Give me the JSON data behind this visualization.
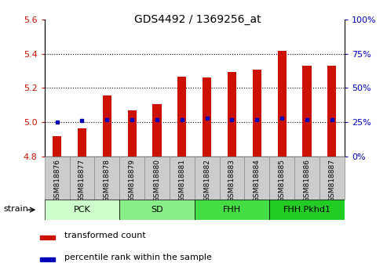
{
  "title": "GDS4492 / 1369256_at",
  "samples": [
    "GSM818876",
    "GSM818877",
    "GSM818878",
    "GSM818879",
    "GSM818880",
    "GSM818881",
    "GSM818882",
    "GSM818883",
    "GSM818884",
    "GSM818885",
    "GSM818886",
    "GSM818887"
  ],
  "transformed_count": [
    4.92,
    4.965,
    5.155,
    5.07,
    5.105,
    5.265,
    5.26,
    5.295,
    5.305,
    5.415,
    5.33,
    5.33
  ],
  "percentile_rank_values": [
    25,
    26,
    27,
    27,
    27,
    27,
    28,
    27,
    27,
    28,
    27,
    27
  ],
  "ylim_left": [
    4.8,
    5.6
  ],
  "ylim_right": [
    0,
    100
  ],
  "yticks_left": [
    4.8,
    5.0,
    5.2,
    5.4,
    5.6
  ],
  "yticks_right": [
    0,
    25,
    50,
    75,
    100
  ],
  "bar_color": "#cc1100",
  "dot_color": "#0000bb",
  "bar_bottom": 4.8,
  "bar_width": 0.35,
  "groups": [
    {
      "label": "PCK",
      "start": 0,
      "end": 3,
      "color": "#ccffcc"
    },
    {
      "label": "SD",
      "start": 3,
      "end": 6,
      "color": "#88ee88"
    },
    {
      "label": "FHH",
      "start": 6,
      "end": 9,
      "color": "#44dd44"
    },
    {
      "label": "FHH.Pkhd1",
      "start": 9,
      "end": 12,
      "color": "#22cc22"
    }
  ],
  "xtick_bg_color": "#cccccc",
  "xtick_border_color": "#888888",
  "legend_red_label": "transformed count",
  "legend_blue_label": "percentile rank within the sample",
  "strain_label": "strain",
  "tick_color_left": "#cc1100",
  "tick_color_right": "#0000bb",
  "grid_color": "black",
  "grid_linestyle": ":",
  "grid_linewidth": 0.8,
  "dotted_yticks": [
    5.0,
    5.2,
    5.4
  ]
}
